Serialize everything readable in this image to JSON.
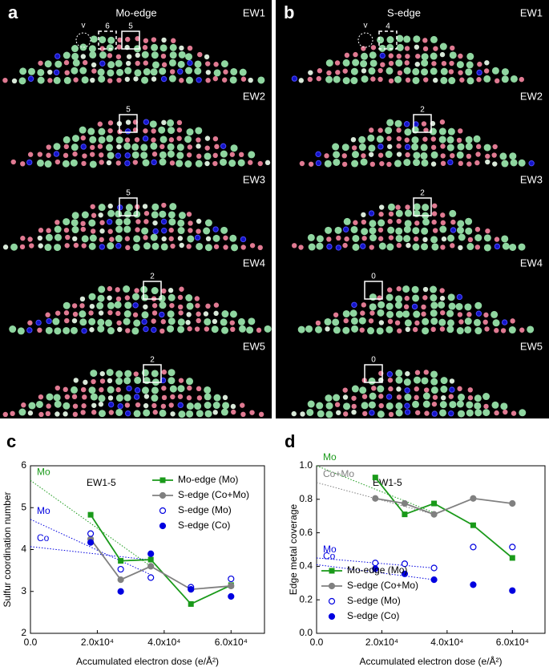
{
  "image_panels": [
    {
      "label": "a",
      "title": "Mo-edge",
      "frames": [
        {
          "name": "EW1",
          "markers": [
            "v",
            "6",
            "5"
          ]
        },
        {
          "name": "EW2",
          "markers": [
            "5"
          ]
        },
        {
          "name": "EW3",
          "markers": [
            "5"
          ]
        },
        {
          "name": "EW4",
          "markers": [
            "2"
          ]
        },
        {
          "name": "EW5",
          "markers": [
            "2"
          ]
        }
      ]
    },
    {
      "label": "b",
      "title": "S-edge",
      "frames": [
        {
          "name": "EW1",
          "markers": [
            "v",
            "4"
          ]
        },
        {
          "name": "EW2",
          "markers": [
            "2"
          ]
        },
        {
          "name": "EW3",
          "markers": [
            "2"
          ]
        },
        {
          "name": "EW4",
          "markers": [
            "0"
          ]
        },
        {
          "name": "EW5",
          "markers": [
            "0"
          ]
        }
      ]
    }
  ],
  "chart_data": [
    {
      "type": "line",
      "panel_label": "c",
      "annotation": "EW1-5",
      "x_label": "Accumulated electron dose (e/Å²)",
      "y_label": "Sulfur coordination number",
      "xlim": [
        0,
        70000
      ],
      "ylim": [
        2,
        6
      ],
      "xticks": [
        {
          "value": 0,
          "label": "0.0"
        },
        {
          "value": 20000,
          "label": "2.0x10⁴"
        },
        {
          "value": 40000,
          "label": "4.0x10⁴"
        },
        {
          "value": 60000,
          "label": "6.0x10⁴"
        }
      ],
      "yticks": [
        2,
        3,
        4,
        5,
        6
      ],
      "legend": "upper right",
      "x": [
        18000,
        27000,
        36000,
        48000,
        60000
      ],
      "series": [
        {
          "name": "Mo-edge (Mo)",
          "color": "#1a9a1a",
          "marker": "square",
          "filled": true,
          "line": true,
          "values": [
            4.83,
            3.73,
            3.76,
            2.7,
            3.15
          ]
        },
        {
          "name": "S-edge (Co+Mo)",
          "color": "#808080",
          "marker": "circle",
          "filled": true,
          "line": true,
          "values": [
            4.25,
            3.28,
            3.6,
            3.05,
            3.13
          ]
        },
        {
          "name": "S-edge (Mo)",
          "color": "#0000e0",
          "marker": "circle",
          "filled": false,
          "line": false,
          "values": [
            4.38,
            3.53,
            3.33,
            3.1,
            3.3
          ]
        },
        {
          "name": "S-edge (Co)",
          "color": "#0000e0",
          "marker": "circle",
          "filled": true,
          "line": false,
          "values": [
            4.17,
            3.0,
            3.9,
            3.05,
            2.88
          ]
        }
      ],
      "trend_lines": [
        {
          "label": "Mo",
          "color": "#1a9a1a",
          "x": [
            0,
            36000
          ],
          "y": [
            5.65,
            3.6
          ]
        },
        {
          "label": "Mo",
          "color": "#0000e0",
          "x": [
            0,
            36000
          ],
          "y": [
            4.72,
            3.4
          ]
        },
        {
          "label": "Co",
          "color": "#0000e0",
          "x": [
            0,
            36000
          ],
          "y": [
            4.07,
            3.75
          ]
        }
      ]
    },
    {
      "type": "line",
      "panel_label": "d",
      "annotation": "EW1-5",
      "x_label": "Accumulated electron dose (e/Å²)",
      "y_label": "Edge metal coverage",
      "xlim": [
        0,
        70000
      ],
      "ylim": [
        0,
        1
      ],
      "xticks": [
        {
          "value": 0,
          "label": "0.0"
        },
        {
          "value": 20000,
          "label": "2.0x10⁴"
        },
        {
          "value": 40000,
          "label": "4.0x10⁴"
        },
        {
          "value": 60000,
          "label": "6.0x10⁴"
        }
      ],
      "yticks": [
        {
          "value": 0,
          "label": "0.0"
        },
        0.2,
        0.4,
        0.6,
        0.8,
        {
          "value": 1,
          "label": "1.0"
        }
      ],
      "legend": "lower left",
      "x": [
        18000,
        27000,
        36000,
        48000,
        60000
      ],
      "series": [
        {
          "name": "Mo-edge (Mo)",
          "color": "#1a9a1a",
          "marker": "square",
          "filled": true,
          "line": true,
          "values": [
            0.93,
            0.71,
            0.775,
            0.645,
            0.45
          ]
        },
        {
          "name": "S-edge (Co+Mo)",
          "color": "#808080",
          "marker": "circle",
          "filled": true,
          "line": true,
          "values": [
            0.805,
            0.775,
            0.71,
            0.805,
            0.775
          ]
        },
        {
          "name": "S-edge (Mo)",
          "color": "#0000e0",
          "marker": "circle",
          "filled": false,
          "line": false,
          "values": [
            0.42,
            0.415,
            0.39,
            0.515,
            0.515
          ]
        },
        {
          "name": "S-edge (Co)",
          "color": "#0000e0",
          "marker": "circle",
          "filled": true,
          "line": false,
          "values": [
            0.385,
            0.355,
            0.32,
            0.29,
            0.255
          ]
        }
      ],
      "trend_lines": [
        {
          "label": "Mo",
          "color": "#1a9a1a",
          "x": [
            0,
            36000
          ],
          "y": [
            1.0,
            0.72
          ]
        },
        {
          "label": "Co+Mo",
          "color": "#808080",
          "x": [
            0,
            36000
          ],
          "y": [
            0.9,
            0.71
          ]
        },
        {
          "label": "Mo",
          "color": "#0000e0",
          "x": [
            0,
            36000
          ],
          "y": [
            0.45,
            0.39
          ]
        },
        {
          "label": "Co",
          "color": "#0000e0",
          "x": [
            0,
            36000
          ],
          "y": [
            0.41,
            0.32
          ]
        }
      ]
    }
  ]
}
